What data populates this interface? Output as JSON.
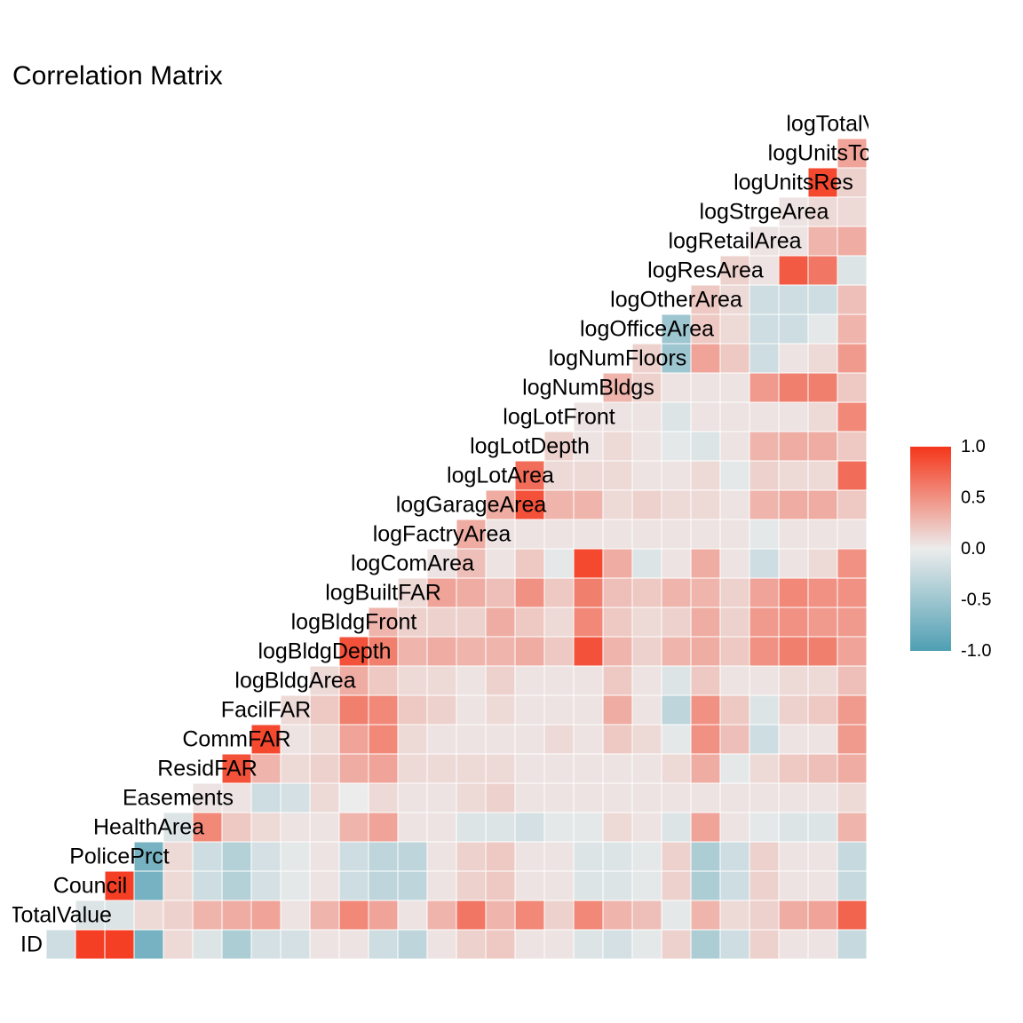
{
  "chart_data": {
    "type": "heatmap",
    "title": "Correlation Matrix",
    "variables": [
      "ID",
      "TotalValue",
      "Council",
      "PolicePrct",
      "HealthArea",
      "Easements",
      "ResidFAR",
      "CommFAR",
      "FacilFAR",
      "logBldgArea",
      "logBldgDepth",
      "logBldgFront",
      "logBuiltFAR",
      "logComArea",
      "logFactryArea",
      "logGarageArea",
      "logLotArea",
      "logLotDepth",
      "logLotFront",
      "logNumBldgs",
      "logNumFloors",
      "logOfficeArea",
      "logOtherArea",
      "logResArea",
      "logRetailArea",
      "logStrgeArea",
      "logUnitsRes",
      "logUnitsTot",
      "logTotalValue"
    ],
    "correlations": [
      [
        -0.2
      ],
      [
        0.95,
        -0.1
      ],
      [
        0.95,
        -0.1,
        0.95
      ],
      [
        -0.75,
        0.1,
        -0.75,
        -0.75
      ],
      [
        0.1,
        0.15,
        0.1,
        0.1,
        -0.1
      ],
      [
        -0.1,
        0.3,
        -0.2,
        -0.2,
        0.55,
        0.05
      ],
      [
        -0.4,
        0.35,
        -0.35,
        -0.35,
        0.2,
        0.05,
        0.85
      ],
      [
        -0.15,
        0.4,
        -0.15,
        -0.15,
        0.1,
        -0.2,
        0.3,
        0.9
      ],
      [
        -0.15,
        0.05,
        -0.05,
        -0.05,
        0.05,
        -0.15,
        0.1,
        0.05,
        0.1
      ],
      [
        0.05,
        0.3,
        0.05,
        0.05,
        0.05,
        0.1,
        0.15,
        0.1,
        0.2,
        0.1
      ],
      [
        0.05,
        0.55,
        -0.2,
        -0.2,
        0.3,
        0.0,
        0.35,
        0.4,
        0.6,
        0.35,
        0.85
      ],
      [
        -0.2,
        0.4,
        -0.3,
        -0.3,
        0.4,
        0.1,
        0.4,
        0.55,
        0.55,
        0.2,
        0.6,
        0.3
      ],
      [
        -0.3,
        0.05,
        -0.3,
        -0.3,
        0.05,
        0.05,
        0.1,
        0.1,
        0.2,
        0.1,
        0.3,
        0.15,
        0.1
      ],
      [
        0.05,
        0.3,
        0.05,
        0.05,
        0.05,
        0.05,
        0.1,
        0.05,
        0.15,
        0.1,
        0.35,
        0.15,
        0.4,
        0.05
      ],
      [
        0.15,
        0.65,
        0.15,
        0.15,
        -0.1,
        0.1,
        0.1,
        0.05,
        0.05,
        0.05,
        0.3,
        0.15,
        0.35,
        0.25,
        0.35
      ],
      [
        0.2,
        0.3,
        0.2,
        0.2,
        -0.1,
        0.15,
        0.1,
        0.05,
        0.1,
        0.15,
        0.3,
        0.35,
        0.25,
        0.05,
        0.05,
        0.35
      ],
      [
        0.05,
        0.55,
        0.05,
        0.05,
        -0.15,
        0.05,
        0.05,
        0.05,
        0.05,
        0.05,
        0.35,
        0.2,
        0.5,
        0.2,
        0.05,
        0.85,
        0.7
      ],
      [
        0.05,
        0.15,
        0.05,
        0.05,
        -0.05,
        0.05,
        0.05,
        0.1,
        0.05,
        0.05,
        0.2,
        0.1,
        0.2,
        -0.05,
        0.05,
        0.3,
        0.1,
        0.15
      ],
      [
        -0.1,
        0.55,
        -0.1,
        -0.1,
        -0.05,
        0.05,
        0.05,
        0.05,
        0.05,
        0.05,
        0.85,
        0.55,
        0.6,
        0.9,
        0.05,
        0.3,
        0.1,
        0.05,
        0.05
      ],
      [
        -0.15,
        0.3,
        -0.1,
        -0.1,
        0.1,
        0.05,
        0.05,
        0.2,
        0.35,
        0.2,
        0.3,
        0.2,
        0.25,
        0.35,
        0.05,
        0.1,
        0.1,
        0.1,
        0.05,
        0.3
      ],
      [
        -0.05,
        0.25,
        -0.05,
        -0.05,
        0.05,
        0.05,
        0.05,
        0.1,
        0.05,
        0.05,
        0.15,
        0.1,
        0.2,
        -0.1,
        0.05,
        0.15,
        0.05,
        0.05,
        0.05,
        0.15,
        0.15
      ],
      [
        0.15,
        -0.05,
        0.15,
        0.15,
        -0.1,
        0.05,
        0.1,
        -0.05,
        -0.3,
        -0.1,
        0.3,
        0.15,
        0.3,
        0.05,
        0.05,
        0.1,
        0.05,
        -0.05,
        -0.1,
        0.05,
        -0.5,
        -0.5
      ],
      [
        -0.4,
        0.3,
        -0.4,
        -0.4,
        0.4,
        0.05,
        0.35,
        0.5,
        0.5,
        0.2,
        0.35,
        0.35,
        0.3,
        0.35,
        0.05,
        0.1,
        0.1,
        -0.1,
        0.05,
        0.05,
        0.4,
        0.2,
        0.2
      ],
      [
        -0.2,
        0.1,
        -0.2,
        -0.2,
        0.05,
        0.05,
        -0.05,
        0.25,
        0.2,
        0.05,
        0.2,
        0.15,
        0.15,
        0.05,
        0.05,
        0.05,
        -0.05,
        0.05,
        0.05,
        0.05,
        0.2,
        0.1,
        0.1,
        0.15
      ],
      [
        0.15,
        0.15,
        0.15,
        0.15,
        -0.05,
        0.05,
        0.1,
        -0.2,
        -0.1,
        0.05,
        0.5,
        0.45,
        0.4,
        -0.2,
        -0.05,
        0.3,
        0.15,
        0.3,
        0.05,
        0.45,
        -0.2,
        -0.2,
        -0.2,
        0.05,
        0.05
      ],
      [
        0.05,
        0.35,
        0.05,
        0.05,
        -0.1,
        0.05,
        0.2,
        0.05,
        0.15,
        0.1,
        0.6,
        0.5,
        0.55,
        0.05,
        0.05,
        0.35,
        0.1,
        0.35,
        0.05,
        0.6,
        0.05,
        -0.2,
        -0.2,
        0.8,
        0.05,
        0.05
      ],
      [
        0.05,
        0.4,
        0.05,
        0.05,
        -0.1,
        0.05,
        0.25,
        0.05,
        0.2,
        0.1,
        0.6,
        0.45,
        0.5,
        0.1,
        0.05,
        0.35,
        0.1,
        0.35,
        0.1,
        0.6,
        0.1,
        -0.05,
        -0.2,
        0.65,
        0.3,
        0.1,
        0.9
      ],
      [
        -0.25,
        0.75,
        -0.25,
        -0.25,
        0.3,
        0.1,
        0.35,
        0.45,
        0.45,
        0.25,
        0.4,
        0.45,
        0.5,
        0.5,
        0.05,
        0.2,
        0.7,
        0.2,
        0.55,
        0.2,
        0.45,
        0.3,
        0.25,
        -0.1,
        0.35,
        0.1,
        0.15,
        0.4
      ]
    ],
    "scale": {
      "min": -1,
      "max": 1,
      "low_color": "#4F9FB3",
      "mid_color": "#ECECEC",
      "high_color": "#F5361A"
    },
    "legend": {
      "position": "right",
      "ticks": [
        1.0,
        0.5,
        0.0,
        -0.5,
        -1.0
      ],
      "tick_labels": [
        "1.0",
        "0.5",
        "0.0",
        "-0.5",
        "-1.0"
      ]
    },
    "grid": false
  }
}
